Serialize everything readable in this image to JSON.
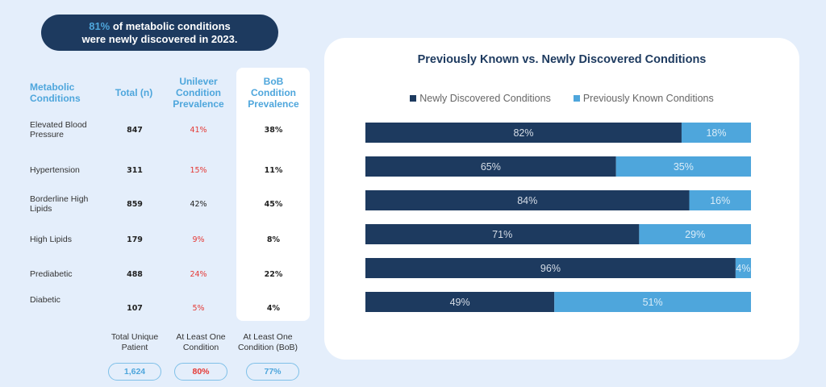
{
  "banner": {
    "highlight": "81%",
    "line1_rest": " of metabolic conditions",
    "line2": "were newly discovered in 2023."
  },
  "table": {
    "headers": {
      "condition": [
        "Metabolic",
        "Conditions"
      ],
      "total": [
        "Total (n)"
      ],
      "unilever": [
        "Unilever",
        "Condition",
        "Prevalence"
      ],
      "bob": [
        "BoB",
        "Condition",
        "Prevalence"
      ]
    },
    "rows": [
      {
        "name": [
          "Elevated Blood",
          "Pressure"
        ],
        "total": "847",
        "unilever": "41%",
        "unilever_highlight": true,
        "bob": "38%"
      },
      {
        "name": [
          "Hypertension"
        ],
        "total": "311",
        "unilever": "15%",
        "unilever_highlight": true,
        "bob": "11%"
      },
      {
        "name": [
          "Borderline High",
          "Lipids"
        ],
        "total": "859",
        "unilever": "42%",
        "unilever_highlight": false,
        "bob": "45%"
      },
      {
        "name": [
          "High Lipids"
        ],
        "total": "179",
        "unilever": "9%",
        "unilever_highlight": true,
        "bob": "8%"
      },
      {
        "name": [
          "Prediabetic"
        ],
        "total": "488",
        "unilever": "24%",
        "unilever_highlight": true,
        "bob": "22%"
      },
      {
        "name": [
          "Diabetic"
        ],
        "total": "107",
        "unilever": "5%",
        "unilever_highlight": true,
        "bob": "4%"
      }
    ]
  },
  "summary": [
    {
      "label": [
        "Total Unique",
        "Patient"
      ],
      "value": "1,624",
      "color": "#4ea6dc"
    },
    {
      "label": [
        "At Least One",
        "Condition"
      ],
      "value": "80%",
      "color": "#e53935"
    },
    {
      "label": [
        "At Least One",
        "Condition (BoB)"
      ],
      "value": "77%",
      "color": "#4ea6dc"
    }
  ],
  "colors": {
    "navy": "#1d3a5f",
    "light_blue": "#4ea6dc",
    "highlight_red": "#e53935"
  },
  "chart_data": {
    "type": "bar",
    "orientation": "horizontal",
    "stacked": true,
    "title": "Previously Known vs. Newly Discovered Conditions",
    "categories": [
      "Elevated Blood Pressure",
      "Hypertension",
      "Borderline High Lipids",
      "High Lipids",
      "Prediabetic",
      "Diabetic"
    ],
    "series": [
      {
        "name": "Newly Discovered Conditions",
        "color": "#1d3a5f",
        "values": [
          82,
          65,
          84,
          71,
          96,
          49
        ]
      },
      {
        "name": "Previously Known Conditions",
        "color": "#4ea6dc",
        "values": [
          18,
          35,
          16,
          29,
          4,
          51
        ]
      }
    ],
    "value_suffix": "%",
    "xlim": [
      0,
      100
    ],
    "legend": "top-center",
    "grid": false
  }
}
